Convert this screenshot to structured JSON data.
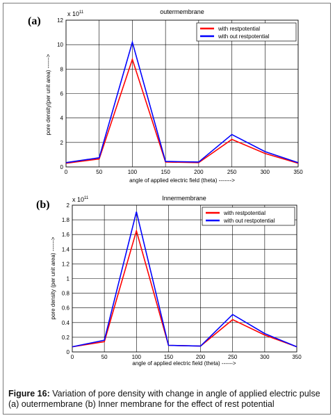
{
  "panels": [
    {
      "letter": "(a)",
      "title": "outermembrane",
      "exponent_base": "x 10",
      "exponent_power": "11",
      "xlabel": "angle of applied electric field (theta) ------->",
      "ylabel": "pore density(per unit area) ------>"
    },
    {
      "letter": "(b)",
      "title": "Innermembrane",
      "exponent_base": "x 10",
      "exponent_power": "11",
      "xlabel": "angle of applied electric field (theta) ------>",
      "ylabel": "pore density (per unit area) ------>"
    }
  ],
  "caption": {
    "label": "Figure 16:",
    "text": " Variation of pore density with change in angle of applied electric pulse (a) outermembrane (b) Inner membrane for the effect of rest potential"
  },
  "chart_data": [
    {
      "type": "line",
      "title": "outermembrane",
      "xlabel": "angle of applied electric field (theta) ------->",
      "ylabel": "pore density(per unit area) ------>",
      "y_scale_note": "x 10^11",
      "x": [
        0,
        50,
        100,
        150,
        200,
        250,
        300,
        350
      ],
      "xlim": [
        0,
        350
      ],
      "ylim": [
        0,
        12
      ],
      "xticks": [
        0,
        50,
        100,
        150,
        200,
        250,
        300,
        350
      ],
      "yticks": [
        0,
        2,
        4,
        6,
        8,
        10,
        12
      ],
      "grid": true,
      "legend_position": "top-right",
      "series": [
        {
          "name": "with restpotential",
          "color": "#ff0000",
          "values": [
            0.3,
            0.65,
            8.8,
            0.4,
            0.35,
            2.25,
            1.1,
            0.3
          ]
        },
        {
          "name": "with  out restpotential",
          "color": "#0000ff",
          "values": [
            0.35,
            0.75,
            10.2,
            0.45,
            0.4,
            2.65,
            1.25,
            0.35
          ]
        }
      ]
    },
    {
      "type": "line",
      "title": "Innermembrane",
      "xlabel": "angle of applied electric field (theta) ------>",
      "ylabel": "pore density (per unit area) ------>",
      "y_scale_note": "x 10^11",
      "x": [
        0,
        50,
        100,
        150,
        200,
        250,
        300,
        350
      ],
      "xlim": [
        0,
        350
      ],
      "ylim": [
        0,
        2
      ],
      "xticks": [
        0,
        50,
        100,
        150,
        200,
        250,
        300,
        350
      ],
      "yticks": [
        0,
        0.2,
        0.4,
        0.6,
        0.8,
        1,
        1.2,
        1.4,
        1.6,
        1.8,
        2
      ],
      "grid": true,
      "legend_position": "top-right",
      "series": [
        {
          "name": "with restpotential",
          "color": "#ff0000",
          "values": [
            0.07,
            0.14,
            1.65,
            0.09,
            0.08,
            0.44,
            0.23,
            0.07
          ]
        },
        {
          "name": "with  out restpotential",
          "color": "#0000ff",
          "values": [
            0.07,
            0.16,
            1.91,
            0.09,
            0.08,
            0.51,
            0.25,
            0.07
          ]
        }
      ]
    }
  ]
}
